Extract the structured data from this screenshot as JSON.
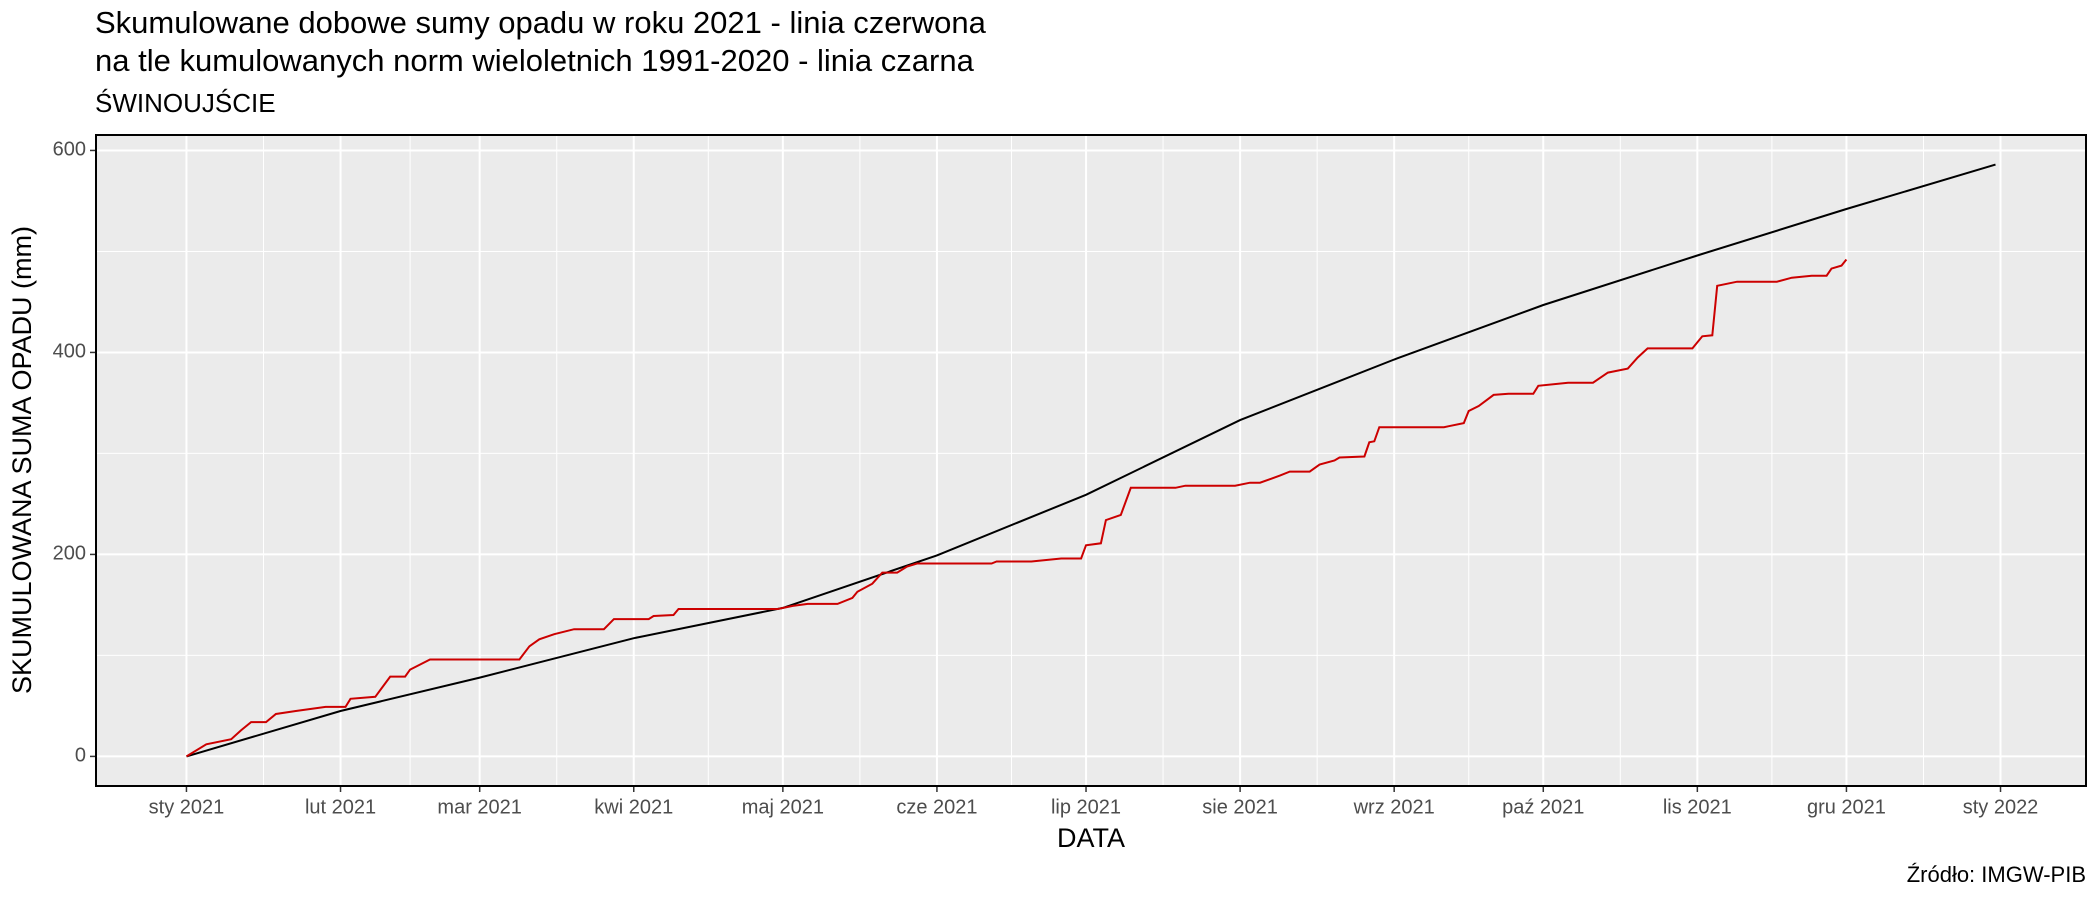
{
  "chart_data": {
    "type": "line",
    "title": [
      "Skumulowane dobowe sumy opadu w roku 2021 - linia czerwona",
      "na tle kumulowanych norm wieloletnich 1991-2020 - linia czarna"
    ],
    "subtitle": "ŚWINOUJŚCIE",
    "xlabel": "DATA",
    "ylabel": "SKUMULOWANA SUMA OPADU (mm)",
    "caption": "Źródło: IMGW-PIB",
    "xlim": [
      -18.2,
      382.2
    ],
    "ylim": [
      -29.3,
      615.3
    ],
    "xticks": [
      {
        "value": 0,
        "label": "sty 2021"
      },
      {
        "value": 31,
        "label": "lut 2021"
      },
      {
        "value": 59,
        "label": "mar 2021"
      },
      {
        "value": 90,
        "label": "kwi 2021"
      },
      {
        "value": 120,
        "label": "maj 2021"
      },
      {
        "value": 151,
        "label": "cze 2021"
      },
      {
        "value": 181,
        "label": "lip 2021"
      },
      {
        "value": 212,
        "label": "sie 2021"
      },
      {
        "value": 243,
        "label": "wrz 2021"
      },
      {
        "value": 273,
        "label": "paź 2021"
      },
      {
        "value": 304,
        "label": "lis 2021"
      },
      {
        "value": 334,
        "label": "gru 2021"
      },
      {
        "value": 365,
        "label": "sty 2022"
      }
    ],
    "xminor": [
      15.5,
      45,
      74.5,
      105,
      135.5,
      166,
      196.5,
      227.5,
      258,
      288.5,
      319,
      349.5
    ],
    "yticks": [
      0,
      200,
      400,
      600
    ],
    "yminor": [
      100,
      300,
      500
    ],
    "grid": true,
    "series": [
      {
        "color": "#000000",
        "x": [
          0,
          31,
          59,
          90,
          120,
          151,
          181,
          212,
          243,
          273,
          304,
          334,
          364
        ],
        "values": [
          0,
          45,
          78,
          117,
          147,
          199,
          259,
          333,
          393,
          447,
          496,
          542,
          586
        ]
      },
      {
        "color": "#cc0000",
        "x": [
          0,
          4,
          9,
          11,
          13,
          16,
          18,
          22,
          28,
          32,
          33,
          38,
          41,
          44,
          45,
          49,
          67,
          69,
          71,
          74,
          78,
          84,
          86,
          93,
          94,
          98,
          99,
          119,
          122,
          125,
          131,
          134,
          135,
          138,
          140,
          143,
          145,
          147,
          162,
          163,
          170,
          176,
          180,
          181,
          184,
          185,
          188,
          190,
          199,
          201,
          211,
          214,
          216,
          220,
          222,
          226,
          228,
          231,
          232,
          237,
          238,
          239,
          240,
          253,
          254,
          257,
          258,
          260,
          263,
          266,
          271,
          272,
          278,
          283,
          286,
          290,
          292,
          294,
          303,
          305,
          307,
          308,
          312,
          320,
          323,
          327,
          330,
          331,
          333,
          334
        ],
        "values": [
          0,
          12,
          17,
          26,
          34,
          34,
          42,
          45,
          49,
          49,
          57,
          59,
          79,
          79,
          86,
          96,
          96,
          109,
          116,
          121,
          126,
          126,
          136,
          136,
          139,
          140,
          146,
          146,
          149,
          151,
          151,
          157,
          163,
          171,
          182,
          182,
          188,
          191,
          191,
          193,
          193,
          196,
          196,
          209,
          211,
          234,
          239,
          266,
          266,
          268,
          268,
          271,
          271,
          278,
          282,
          282,
          289,
          293,
          296,
          297,
          311,
          312,
          326,
          326,
          327,
          330,
          342,
          347,
          358,
          359,
          359,
          367,
          370,
          370,
          380,
          384,
          395,
          404,
          404,
          416,
          417,
          466,
          470,
          470,
          474,
          476,
          476,
          483,
          486,
          492
        ]
      }
    ]
  }
}
